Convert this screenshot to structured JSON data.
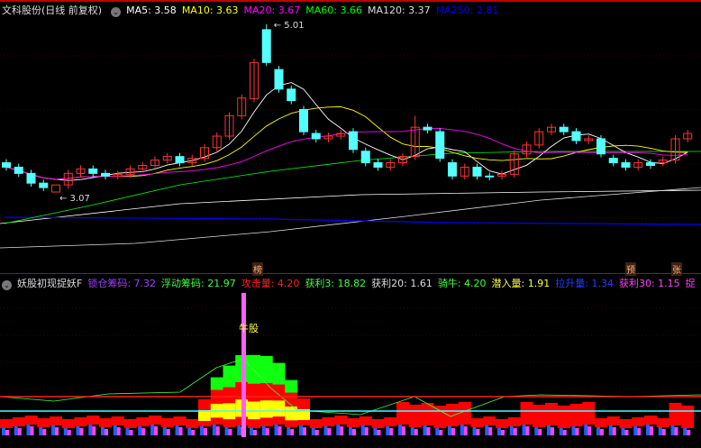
{
  "header": {
    "title": "文科股份(日线 前复权)",
    "ma": [
      {
        "label": "MA5: 3.58",
        "color": "#ffffff"
      },
      {
        "label": "MA10: 3.63",
        "color": "#ffff00"
      },
      {
        "label": "MA20: 3.67",
        "color": "#ff00ff"
      },
      {
        "label": "MA60: 3.66",
        "color": "#00ff00"
      },
      {
        "label": "MA120: 3.37",
        "color": "#dddddd"
      },
      {
        "label": "MA250: 2.81",
        "color": "#0000ff"
      }
    ]
  },
  "price_chart": {
    "high_label": "5.01",
    "low_label": "3.07",
    "candles": [
      [
        3.45,
        3.4
      ],
      [
        3.4,
        3.33
      ],
      [
        3.33,
        3.22
      ],
      [
        3.22,
        3.17
      ],
      [
        3.12,
        3.2
      ],
      [
        3.2,
        3.33
      ],
      [
        3.33,
        3.38
      ],
      [
        3.38,
        3.33
      ],
      [
        3.33,
        3.3
      ],
      [
        3.3,
        3.32
      ],
      [
        3.32,
        3.38
      ],
      [
        3.38,
        3.42
      ],
      [
        3.42,
        3.48
      ],
      [
        3.48,
        3.52
      ],
      [
        3.52,
        3.45
      ],
      [
        3.45,
        3.5
      ],
      [
        3.5,
        3.62
      ],
      [
        3.62,
        3.75
      ],
      [
        3.75,
        3.98
      ],
      [
        3.98,
        4.18
      ],
      [
        4.17,
        4.58
      ],
      [
        4.95,
        4.58
      ],
      [
        4.5,
        4.28
      ],
      [
        4.28,
        4.15
      ],
      [
        4.05,
        3.8
      ],
      [
        3.78,
        3.72
      ],
      [
        3.72,
        3.75
      ],
      [
        3.75,
        3.78
      ],
      [
        3.8,
        3.6
      ],
      [
        3.58,
        3.45
      ],
      [
        3.45,
        3.4
      ],
      [
        3.4,
        3.45
      ],
      [
        3.45,
        3.52
      ],
      [
        3.52,
        3.85
      ],
      [
        3.85,
        3.82
      ],
      [
        3.8,
        3.5
      ],
      [
        3.45,
        3.3
      ],
      [
        3.3,
        3.4
      ],
      [
        3.4,
        3.3
      ],
      [
        3.3,
        3.29
      ],
      [
        3.3,
        3.32
      ],
      [
        3.32,
        3.55
      ],
      [
        3.55,
        3.65
      ],
      [
        3.65,
        3.8
      ],
      [
        3.8,
        3.85
      ],
      [
        3.85,
        3.8
      ],
      [
        3.8,
        3.7
      ],
      [
        3.7,
        3.72
      ],
      [
        3.72,
        3.55
      ],
      [
        3.5,
        3.45
      ],
      [
        3.45,
        3.4
      ],
      [
        3.4,
        3.45
      ],
      [
        3.45,
        3.42
      ],
      [
        3.45,
        3.48
      ],
      [
        3.48,
        3.72
      ],
      [
        3.72,
        3.78
      ]
    ],
    "markers": [
      "榜",
      "预",
      "张"
    ]
  },
  "indicator": {
    "name": "妖股初现捉妖F",
    "values": [
      {
        "label": "锁仓筹码: 7.32",
        "color": "#a040ff"
      },
      {
        "label": "浮动筹码: 21.97",
        "color": "#40ff40"
      },
      {
        "label": "攻击量: 4.20",
        "color": "#ff2020"
      },
      {
        "label": "获利3: 18.82",
        "color": "#40ff40"
      },
      {
        "label": "获利20: 1.61",
        "color": "#dddddd"
      },
      {
        "label": "骑牛: 4.20",
        "color": "#40ff40"
      },
      {
        "label": "潜入量: 1.91",
        "color": "#ffff40"
      },
      {
        "label": "拉升量: 1.34",
        "color": "#2040ff"
      },
      {
        "label": "获利30: 1.15",
        "color": "#ff40ff"
      },
      {
        "label": "捉",
        "color": "#ff40ff"
      }
    ],
    "signal_label": "牛股"
  }
}
